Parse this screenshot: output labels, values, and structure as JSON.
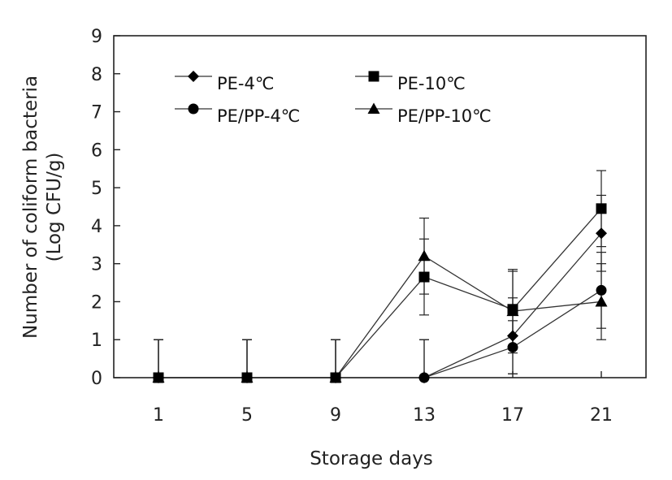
{
  "chart_data": {
    "type": "line",
    "title": "",
    "xlabel": "Storage days",
    "ylabel": "Number of coliform bacteria",
    "ylabel_unit": "(Log CFU/g)",
    "categories": [
      "1",
      "5",
      "9",
      "13",
      "17",
      "21"
    ],
    "ylim": [
      0,
      9
    ],
    "yticks": [
      "0",
      "1",
      "2",
      "3",
      "4",
      "5",
      "6",
      "7",
      "8",
      "9"
    ],
    "grid": false,
    "legend_position": "top-left",
    "series": [
      {
        "name": "PE-4℃",
        "marker": "diamond",
        "values": [
          0,
          0,
          0,
          0,
          1.1,
          3.8
        ],
        "errors": [
          1,
          1,
          1,
          1,
          1.0,
          1.0
        ]
      },
      {
        "name": "PE-10℃",
        "marker": "square",
        "values": [
          0,
          0,
          0,
          2.65,
          1.8,
          4.45
        ],
        "errors": [
          1,
          1,
          1,
          1.0,
          1.0,
          1.0
        ]
      },
      {
        "name": "PE/PP-4℃",
        "marker": "circle",
        "values": [
          0,
          0,
          0,
          0,
          0.8,
          2.3
        ],
        "errors": [
          1,
          1,
          1,
          1,
          0.7,
          1.0
        ]
      },
      {
        "name": "PE/PP-10℃",
        "marker": "triangle",
        "values": [
          0,
          0,
          0,
          3.2,
          1.75,
          2.0
        ],
        "errors": [
          1,
          1,
          1,
          1.0,
          1.1,
          1.0
        ]
      }
    ]
  }
}
